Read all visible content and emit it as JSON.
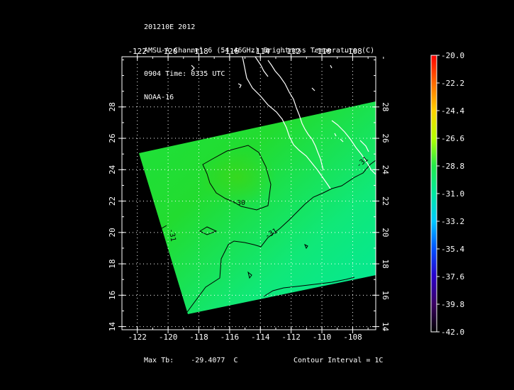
{
  "header": {
    "line1": "201210E 2012",
    "line2": "AMSU-A Channel 6 (54.46GHz) Brightness Temperature (C)",
    "line3": "0904 Time: 0335 UTC",
    "line4": "NOAA-16"
  },
  "map": {
    "lon_ticks": [
      "-122",
      "-120",
      "-118",
      "-116",
      "-114",
      "-112",
      "-110",
      "-108"
    ],
    "lat_ticks": [
      "28",
      "26",
      "24",
      "22",
      "20",
      "18",
      "16",
      "14"
    ],
    "lon_range": [
      -123,
      -106.5
    ],
    "lat_range": [
      13.8,
      31.2
    ],
    "contour_labels": [
      "-30",
      "-31",
      "-31",
      "-31"
    ],
    "swath_color": "#22e84a",
    "coast_color": "#ffffff"
  },
  "colorbar": {
    "labels": [
      "-20.0",
      "-22.2",
      "-24.4",
      "-26.6",
      "-28.8",
      "-31.0",
      "-33.2",
      "-35.4",
      "-37.6",
      "-39.8",
      "-42.0"
    ],
    "colors": [
      "#ff0000",
      "#ff6a00",
      "#ffd200",
      "#b4ff00",
      "#22e84a",
      "#00e8a0",
      "#00c8ff",
      "#0050ff",
      "#2a00c8",
      "#3a0060",
      "#000000"
    ]
  },
  "footer": {
    "max_label": "Max Tb:",
    "max_value": "-29.4077",
    "max_unit": "C",
    "contour_interval": "Contour Interval = 1C"
  }
}
